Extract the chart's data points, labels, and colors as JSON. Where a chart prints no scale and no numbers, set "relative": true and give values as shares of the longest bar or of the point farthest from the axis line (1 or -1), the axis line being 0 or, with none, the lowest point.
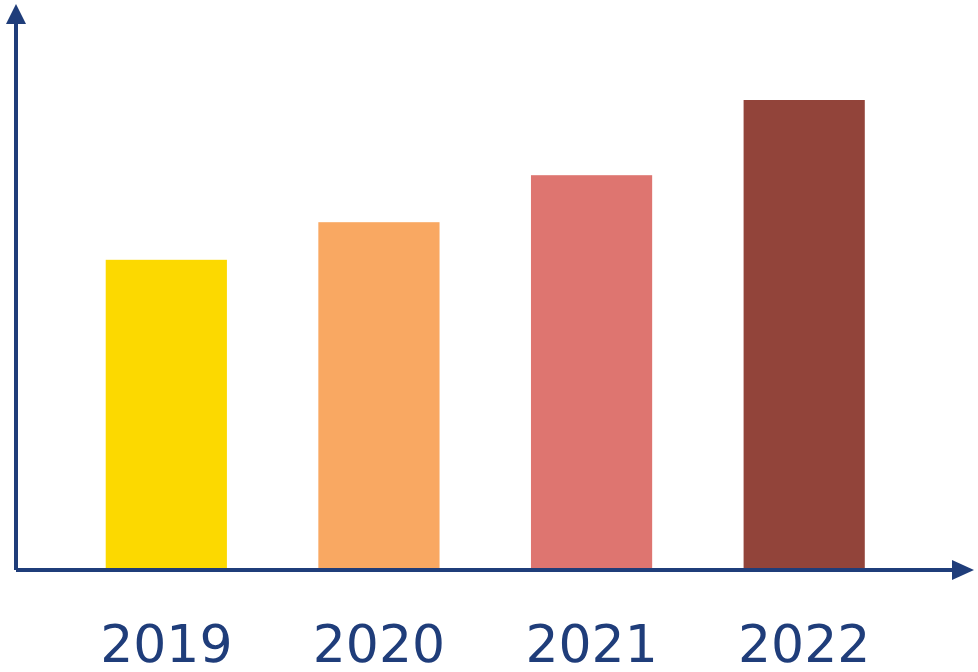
{
  "chart_data": {
    "type": "bar",
    "relative": true,
    "categories": [
      "2019",
      "2020",
      "2021",
      "2022"
    ],
    "values": [
      0.66,
      0.74,
      0.84,
      1
    ],
    "colors": [
      "#fcd900",
      "#f9a862",
      "#de7570",
      "#92443a"
    ]
  }
}
